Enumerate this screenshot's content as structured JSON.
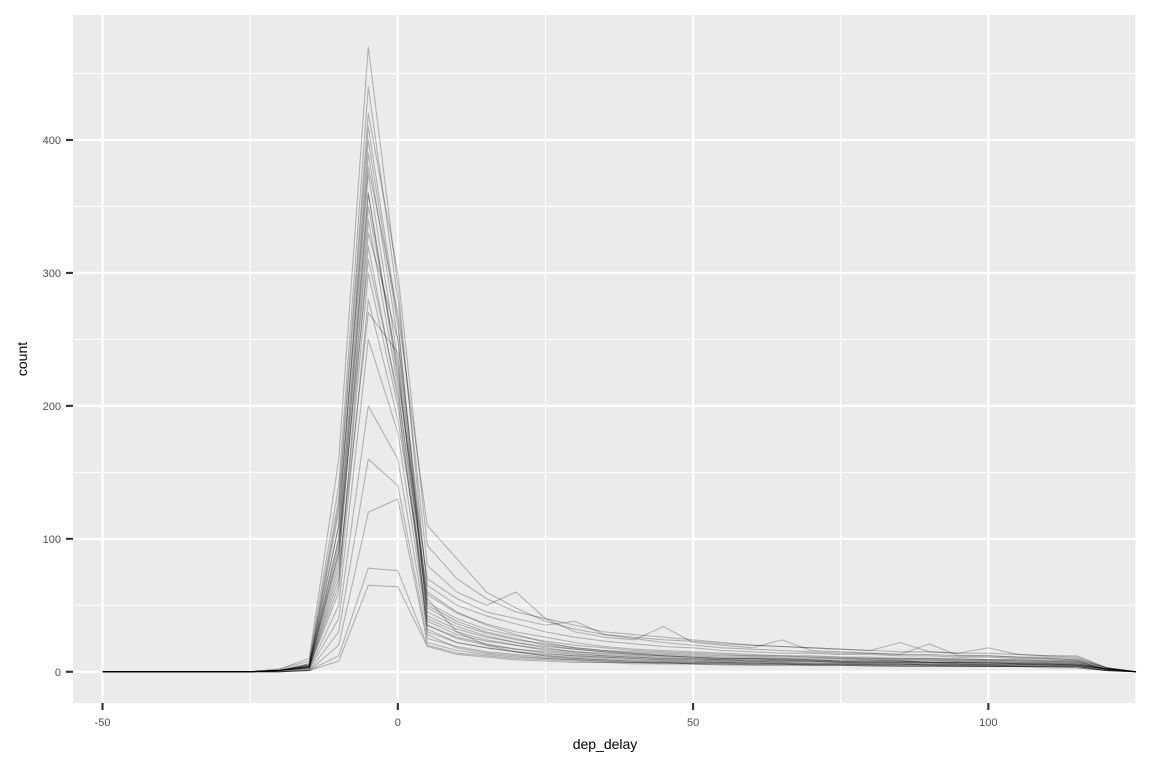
{
  "chart_data": {
    "type": "line",
    "title": "",
    "xlabel": "dep_delay",
    "ylabel": "count",
    "xlim": [
      -55,
      125
    ],
    "ylim": [
      -23.5,
      494
    ],
    "x_ticks": [
      -50,
      0,
      50,
      100
    ],
    "x_tick_labels": [
      "-50",
      "0",
      "50",
      "100"
    ],
    "y_ticks": [
      0,
      100,
      200,
      300,
      400
    ],
    "y_tick_labels": [
      "0",
      "100",
      "200",
      "300",
      "400"
    ],
    "grid": true,
    "legend": "none",
    "line_color": "#000000",
    "line_alpha": 0.25,
    "panel_background": "#EBEBEB",
    "grid_color": "#FFFFFF",
    "x": [
      -50,
      -45,
      -40,
      -35,
      -30,
      -25,
      -20,
      -15,
      -10,
      -5,
      0,
      5,
      10,
      15,
      20,
      25,
      30,
      35,
      40,
      45,
      50,
      55,
      60,
      65,
      70,
      75,
      80,
      85,
      90,
      95,
      100,
      105,
      110,
      115,
      120,
      125
    ],
    "series": [
      {
        "values": [
          0,
          0,
          0,
          0,
          0,
          0,
          2,
          10,
          160,
          470,
          290,
          60,
          45,
          35,
          28,
          22,
          18,
          16,
          14,
          12,
          11,
          10,
          10,
          9,
          9,
          8,
          8,
          8,
          7,
          7,
          7,
          6,
          6,
          5,
          2,
          0
        ]
      },
      {
        "values": [
          0,
          0,
          0,
          0,
          0,
          0,
          1,
          6,
          110,
          400,
          260,
          50,
          38,
          30,
          25,
          20,
          17,
          15,
          13,
          12,
          11,
          10,
          10,
          9,
          9,
          8,
          8,
          8,
          7,
          7,
          7,
          6,
          6,
          6,
          2,
          0
        ]
      },
      {
        "values": [
          0,
          0,
          0,
          0,
          0,
          0,
          1,
          4,
          90,
          350,
          230,
          45,
          34,
          27,
          22,
          18,
          15,
          13,
          12,
          11,
          10,
          9,
          9,
          8,
          8,
          8,
          7,
          7,
          7,
          6,
          6,
          6,
          6,
          5,
          2,
          0
        ]
      },
      {
        "values": [
          0,
          0,
          0,
          0,
          0,
          0,
          1,
          3,
          70,
          300,
          200,
          40,
          30,
          24,
          20,
          16,
          14,
          12,
          11,
          10,
          9,
          9,
          8,
          8,
          8,
          7,
          7,
          7,
          6,
          6,
          6,
          6,
          5,
          5,
          2,
          0
        ]
      },
      {
        "values": [
          0,
          0,
          0,
          0,
          0,
          0,
          0,
          2,
          50,
          250,
          180,
          35,
          26,
          21,
          17,
          14,
          12,
          11,
          10,
          9,
          8,
          8,
          8,
          7,
          7,
          7,
          6,
          6,
          6,
          6,
          5,
          5,
          5,
          5,
          2,
          0
        ]
      },
      {
        "values": [
          0,
          0,
          0,
          0,
          0,
          0,
          0,
          2,
          40,
          200,
          160,
          30,
          22,
          18,
          15,
          12,
          11,
          10,
          9,
          8,
          8,
          7,
          7,
          7,
          6,
          6,
          6,
          6,
          5,
          5,
          5,
          5,
          5,
          4,
          1,
          0
        ]
      },
      {
        "values": [
          0,
          0,
          0,
          0,
          0,
          0,
          0,
          1,
          30,
          160,
          140,
          25,
          19,
          15,
          13,
          11,
          10,
          9,
          8,
          7,
          7,
          7,
          6,
          6,
          6,
          6,
          5,
          5,
          5,
          5,
          5,
          4,
          4,
          4,
          1,
          0
        ]
      },
      {
        "values": [
          0,
          0,
          0,
          0,
          0,
          0,
          0,
          1,
          20,
          120,
          130,
          22,
          16,
          13,
          11,
          10,
          9,
          8,
          7,
          7,
          6,
          6,
          6,
          6,
          5,
          5,
          5,
          5,
          5,
          4,
          4,
          4,
          4,
          4,
          1,
          0
        ]
      },
      {
        "values": [
          0,
          0,
          0,
          0,
          0,
          0,
          0,
          1,
          12,
          78,
          76,
          20,
          14,
          12,
          10,
          9,
          8,
          7,
          7,
          6,
          6,
          6,
          5,
          5,
          5,
          5,
          5,
          4,
          4,
          4,
          4,
          4,
          4,
          3,
          1,
          0
        ]
      },
      {
        "values": [
          0,
          0,
          0,
          0,
          0,
          0,
          0,
          1,
          8,
          65,
          64,
          19,
          13,
          11,
          9,
          8,
          7,
          7,
          6,
          6,
          6,
          5,
          5,
          5,
          5,
          5,
          4,
          4,
          4,
          4,
          4,
          4,
          3,
          3,
          1,
          0
        ]
      },
      {
        "values": [
          0,
          0,
          0,
          0,
          0,
          0,
          1,
          5,
          120,
          380,
          270,
          110,
          85,
          60,
          48,
          38,
          32,
          28,
          25,
          22,
          20,
          18,
          17,
          16,
          15,
          14,
          14,
          13,
          13,
          12,
          12,
          11,
          11,
          10,
          3,
          0
        ]
      },
      {
        "values": [
          0,
          0,
          0,
          0,
          0,
          0,
          1,
          6,
          130,
          420,
          300,
          95,
          70,
          55,
          45,
          40,
          35,
          30,
          28,
          26,
          24,
          22,
          20,
          19,
          18,
          17,
          16,
          15,
          15,
          14,
          14,
          13,
          12,
          12,
          3,
          0
        ]
      },
      {
        "values": [
          0,
          0,
          0,
          0,
          0,
          0,
          2,
          8,
          140,
          440,
          280,
          80,
          60,
          50,
          60,
          40,
          30,
          26,
          24,
          34,
          22,
          20,
          18,
          24,
          16,
          15,
          14,
          13,
          21,
          12,
          12,
          11,
          10,
          9,
          3,
          0
        ]
      },
      {
        "values": [
          0,
          0,
          0,
          0,
          0,
          0,
          1,
          5,
          100,
          360,
          220,
          70,
          55,
          45,
          40,
          35,
          38,
          28,
          26,
          24,
          23,
          21,
          20,
          19,
          18,
          17,
          16,
          22,
          15,
          14,
          18,
          13,
          12,
          11,
          3,
          0
        ]
      },
      {
        "values": [
          0,
          0,
          0,
          0,
          0,
          0,
          1,
          4,
          85,
          330,
          250,
          65,
          50,
          42,
          36,
          30,
          26,
          23,
          21,
          19,
          18,
          16,
          15,
          14,
          14,
          13,
          13,
          12,
          12,
          11,
          11,
          10,
          10,
          9,
          3,
          0
        ]
      },
      {
        "values": [
          0,
          0,
          0,
          0,
          0,
          0,
          1,
          4,
          95,
          310,
          210,
          58,
          44,
          36,
          30,
          26,
          22,
          19,
          17,
          16,
          15,
          14,
          13,
          12,
          12,
          11,
          11,
          10,
          10,
          10,
          9,
          9,
          9,
          8,
          2,
          0
        ]
      },
      {
        "values": [
          0,
          0,
          0,
          0,
          0,
          0,
          1,
          3,
          60,
          280,
          190,
          52,
          40,
          32,
          27,
          23,
          20,
          18,
          16,
          15,
          14,
          13,
          12,
          12,
          11,
          11,
          10,
          10,
          10,
          9,
          9,
          9,
          8,
          8,
          2,
          0
        ]
      },
      {
        "values": [
          0,
          0,
          0,
          0,
          0,
          0,
          1,
          3,
          75,
          270,
          240,
          48,
          36,
          29,
          24,
          21,
          18,
          16,
          15,
          14,
          13,
          12,
          12,
          11,
          11,
          10,
          10,
          9,
          9,
          9,
          9,
          8,
          8,
          8,
          2,
          0
        ]
      },
      {
        "values": [
          0,
          0,
          0,
          0,
          0,
          0,
          1,
          4,
          110,
          390,
          250,
          42,
          32,
          26,
          22,
          19,
          17,
          15,
          14,
          13,
          12,
          11,
          11,
          10,
          10,
          10,
          9,
          9,
          9,
          8,
          8,
          8,
          8,
          7,
          2,
          0
        ]
      },
      {
        "values": [
          0,
          0,
          0,
          0,
          0,
          0,
          1,
          5,
          125,
          410,
          265,
          38,
          28,
          23,
          20,
          17,
          15,
          14,
          13,
          12,
          11,
          10,
          10,
          10,
          9,
          9,
          9,
          8,
          8,
          8,
          8,
          7,
          7,
          7,
          2,
          0
        ]
      },
      {
        "values": [
          0,
          0,
          0,
          0,
          0,
          0,
          1,
          3,
          80,
          340,
          215,
          35,
          25,
          20,
          17,
          15,
          13,
          12,
          11,
          10,
          10,
          9,
          9,
          9,
          8,
          8,
          8,
          8,
          7,
          7,
          7,
          7,
          7,
          6,
          2,
          0
        ]
      },
      {
        "values": [
          0,
          0,
          0,
          0,
          0,
          0,
          1,
          3,
          65,
          320,
          205,
          32,
          22,
          18,
          15,
          13,
          12,
          11,
          10,
          9,
          9,
          8,
          8,
          8,
          8,
          7,
          7,
          7,
          7,
          7,
          6,
          6,
          6,
          6,
          2,
          0
        ]
      },
      {
        "values": [
          0,
          0,
          0,
          0,
          0,
          0,
          1,
          4,
          90,
          360,
          225,
          55,
          30,
          20,
          15,
          12,
          10,
          9,
          8,
          8,
          7,
          7,
          7,
          6,
          6,
          6,
          6,
          6,
          5,
          5,
          5,
          5,
          5,
          5,
          2,
          0
        ]
      },
      {
        "values": [
          0,
          0,
          0,
          0,
          0,
          0,
          1,
          4,
          100,
          375,
          235,
          28,
          18,
          14,
          12,
          10,
          9,
          8,
          7,
          7,
          6,
          6,
          6,
          6,
          5,
          5,
          5,
          5,
          5,
          5,
          4,
          4,
          4,
          4,
          1,
          0
        ]
      }
    ]
  }
}
